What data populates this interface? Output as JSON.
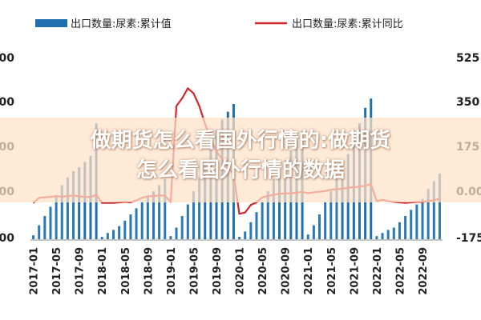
{
  "chart_data": {
    "type": "bar+line",
    "legend": [
      {
        "label": "出口数量:尿素:累计值",
        "color": "#1f6fae",
        "kind": "bar"
      },
      {
        "label": "出口数量:尿素:累计同比",
        "color": "#d2262d",
        "kind": "line"
      }
    ],
    "left_ticks": [
      "00",
      "00",
      "00",
      "00",
      "000"
    ],
    "right_ticks": [
      "525",
      "350",
      "175",
      "0.00",
      "-175"
    ],
    "x_ticks": [
      "2017-01",
      "2017-05",
      "2017-09",
      "2018-01",
      "2018-05",
      "2018-09",
      "2019-01",
      "2019-05",
      "2019-09",
      "2020-01",
      "2020-05",
      "2020-09",
      "2021-01",
      "2021-05",
      "2021-09",
      "2022-01",
      "2022-05",
      "2022-09"
    ],
    "right_axis_range": [
      -175,
      525
    ],
    "bars": [
      5,
      18,
      30,
      42,
      55,
      70,
      80,
      88,
      93,
      100,
      108,
      150,
      3,
      8,
      12,
      17,
      24,
      32,
      40,
      48,
      55,
      62,
      70,
      78,
      4,
      15,
      30,
      45,
      62,
      80,
      100,
      140,
      142,
      155,
      165,
      175,
      3,
      10,
      22,
      35,
      48,
      62,
      78,
      90,
      102,
      115,
      128,
      140,
      6,
      18,
      32,
      48,
      62,
      78,
      95,
      110,
      130,
      150,
      170,
      182,
      4,
      8,
      12,
      15,
      22,
      30,
      38,
      45,
      52,
      65,
      75,
      85
    ],
    "line": [
      -32,
      -12,
      -10,
      -8,
      -5,
      -8,
      -5,
      -3,
      -6,
      -8,
      -9,
      0,
      -32,
      -32,
      -32,
      -30,
      -28,
      -30,
      -22,
      -12,
      -6,
      -5,
      -3,
      -3,
      -28,
      350,
      380,
      420,
      400,
      350,
      280,
      220,
      170,
      140,
      110,
      80,
      -75,
      -70,
      -40,
      -30,
      -10,
      -5,
      0,
      4,
      5,
      6,
      8,
      12,
      6,
      10,
      12,
      15,
      20,
      22,
      24,
      28,
      30,
      32,
      36,
      42,
      -25,
      -20,
      -25,
      -28,
      -30,
      -32,
      -30,
      -28,
      -28,
      -25,
      -22,
      -15
    ]
  },
  "overlay": {
    "line1": "做期货怎么看国外行情的:做期货",
    "line2": "怎么看国外行情的数据"
  }
}
